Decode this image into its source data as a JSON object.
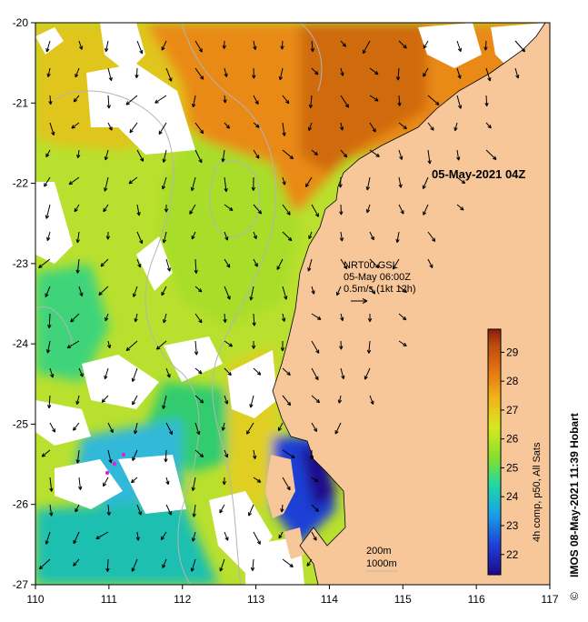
{
  "map": {
    "timestamp": "05-May-2021 04Z",
    "current_source": {
      "line1": "NRT00 GSL",
      "line2": "05-May 06:00Z",
      "line3": "0.5m/s (1kt 12h)"
    },
    "contours": {
      "shallow": "200m",
      "deep": "1000m"
    },
    "credit": "IMOS 08-May-2021 11:39 Hobart",
    "copyright_symbol": "©",
    "colorbar": {
      "label": "4h comp, p50, All Sats",
      "ticks": [
        "22",
        "23",
        "24",
        "25",
        "26",
        "27",
        "28",
        "29"
      ],
      "range": [
        21.3,
        29.8
      ],
      "colors": [
        "#1a0a8c",
        "#1f3fd6",
        "#19a3e6",
        "#1fd6a8",
        "#7fe030",
        "#d8e820",
        "#f2b21a",
        "#e07010",
        "#b84a0c",
        "#8c1a0c"
      ]
    },
    "axes": {
      "lon_ticks": [
        "110",
        "111",
        "112",
        "113",
        "114",
        "115",
        "116",
        "117"
      ],
      "lat_ticks": [
        "-20",
        "-21",
        "-22",
        "-23",
        "-24",
        "-25",
        "-26",
        "-27"
      ],
      "lon_range": [
        110,
        117
      ],
      "lat_range": [
        -27,
        -20
      ]
    },
    "colors": {
      "land": "#f7c79a",
      "cloud": "#ffffff",
      "contour": "#b4b4b4",
      "arrow": "#000000",
      "marker": "#e020e0"
    }
  }
}
